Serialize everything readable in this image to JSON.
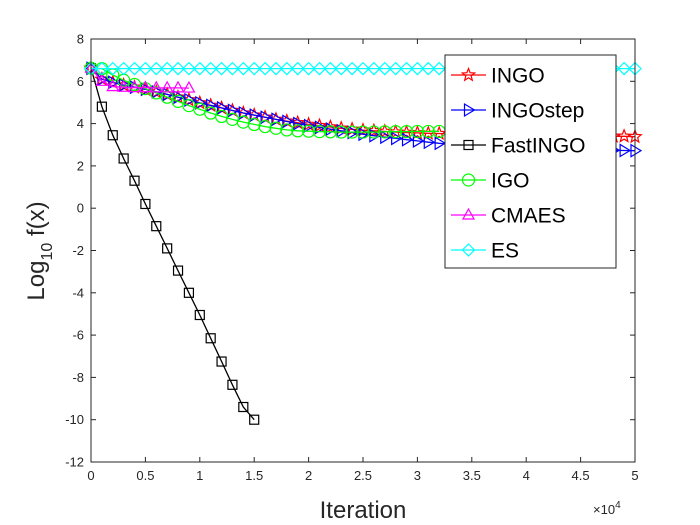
{
  "chart_data": {
    "type": "line",
    "xlabel": "Iteration",
    "ylabel": "Log",
    "ylabel_sub": "10",
    "ylabel_tail": " f(x)",
    "x_multiplier_label": "×10",
    "x_multiplier_exp": "4",
    "xlim": [
      0,
      50000
    ],
    "ylim": [
      -12,
      8
    ],
    "xticks": [
      0,
      5000,
      10000,
      15000,
      20000,
      25000,
      30000,
      35000,
      40000,
      45000,
      50000
    ],
    "xtick_labels": [
      "0",
      "0.5",
      "1",
      "1.5",
      "2",
      "2.5",
      "3",
      "3.5",
      "4",
      "4.5",
      "5"
    ],
    "yticks": [
      8,
      6,
      4,
      2,
      0,
      -2,
      -4,
      -6,
      -8,
      -10,
      -12
    ],
    "ytick_labels": [
      "8",
      "6",
      "4",
      "2",
      "0",
      "-2",
      "-4",
      "-6",
      "-8",
      "-10",
      "-12"
    ],
    "legend_position": "top-right",
    "series": [
      {
        "name": "INGO",
        "color": "#ff0000",
        "marker": "star",
        "x": [
          0,
          1000,
          2000,
          3000,
          4000,
          5000,
          6000,
          7000,
          8000,
          9000,
          10000,
          11000,
          12000,
          13000,
          14000,
          15000,
          16000,
          17000,
          18000,
          19000,
          20000,
          21000,
          22000,
          23000,
          24000,
          25000,
          26000,
          27000,
          28000,
          29000,
          30000,
          31000,
          32000,
          33000,
          34000,
          35000,
          36000,
          37000,
          38000,
          39000,
          40000,
          41000,
          42000,
          43000,
          44000,
          45000,
          46000,
          47000,
          48000,
          49000,
          50000
        ],
        "y": [
          6.62,
          6.1,
          5.95,
          5.82,
          5.72,
          5.62,
          5.5,
          5.38,
          5.25,
          5.12,
          4.98,
          4.86,
          4.74,
          4.62,
          4.5,
          4.4,
          4.3,
          4.2,
          4.12,
          4.04,
          3.96,
          3.9,
          3.84,
          3.78,
          3.73,
          3.69,
          3.66,
          3.63,
          3.6,
          3.58,
          3.56,
          3.54,
          3.53,
          3.52,
          3.51,
          3.5,
          3.49,
          3.48,
          3.47,
          3.47,
          3.46,
          3.45,
          3.45,
          3.44,
          3.43,
          3.43,
          3.42,
          3.41,
          3.4,
          3.4,
          3.38
        ]
      },
      {
        "name": "INGOstep",
        "color": "#0000ff",
        "marker": "triangle-right",
        "x": [
          0,
          1000,
          2000,
          3000,
          4000,
          5000,
          6000,
          7000,
          8000,
          9000,
          10000,
          11000,
          12000,
          13000,
          14000,
          15000,
          16000,
          17000,
          18000,
          19000,
          20000,
          21000,
          22000,
          23000,
          24000,
          25000,
          26000,
          27000,
          28000,
          29000,
          30000,
          31000,
          32000,
          33000,
          34000,
          35000,
          36000,
          37000,
          38000,
          39000,
          40000,
          41000,
          42000,
          43000,
          44000,
          45000,
          46000,
          47000,
          48000,
          49000,
          50000
        ],
        "y": [
          6.62,
          6.1,
          5.95,
          5.82,
          5.72,
          5.62,
          5.5,
          5.38,
          5.25,
          5.12,
          4.98,
          4.86,
          4.74,
          4.62,
          4.5,
          4.4,
          4.3,
          4.2,
          4.1,
          4.0,
          3.9,
          3.82,
          3.74,
          3.66,
          3.58,
          3.5,
          3.43,
          3.36,
          3.3,
          3.24,
          3.18,
          3.12,
          3.07,
          3.03,
          2.99,
          2.96,
          2.93,
          2.9,
          2.88,
          2.86,
          2.84,
          2.82,
          2.8,
          2.79,
          2.78,
          2.77,
          2.76,
          2.75,
          2.74,
          2.73,
          2.72
        ]
      },
      {
        "name": "FastINGO",
        "color": "#000000",
        "marker": "square",
        "x": [
          0,
          1000,
          2000,
          3000,
          4000,
          5000,
          6000,
          7000,
          8000,
          9000,
          10000,
          11000,
          12000,
          13000,
          14000,
          15000
        ],
        "y": [
          6.62,
          4.8,
          3.45,
          2.35,
          1.3,
          0.2,
          -0.85,
          -1.9,
          -2.95,
          -4.0,
          -5.05,
          -6.15,
          -7.25,
          -8.35,
          -9.4,
          -10.0
        ]
      },
      {
        "name": "IGO",
        "color": "#00ff00",
        "marker": "circle",
        "x": [
          0,
          1000,
          2000,
          3000,
          4000,
          5000,
          6000,
          7000,
          8000,
          9000,
          10000,
          11000,
          12000,
          13000,
          14000,
          15000,
          16000,
          17000,
          18000,
          19000,
          20000,
          21000,
          22000,
          23000,
          24000,
          25000,
          26000,
          27000,
          28000,
          29000,
          30000,
          31000,
          32000
        ],
        "y": [
          6.62,
          6.6,
          6.3,
          6.05,
          5.85,
          5.65,
          5.45,
          5.25,
          5.05,
          4.85,
          4.68,
          4.5,
          4.34,
          4.2,
          4.07,
          3.96,
          3.86,
          3.78,
          3.7,
          3.66,
          3.64,
          3.62,
          3.61,
          3.6,
          3.6,
          3.6,
          3.6,
          3.61,
          3.62,
          3.62,
          3.63,
          3.63,
          3.63
        ]
      },
      {
        "name": "CMAES",
        "color": "#ff00ff",
        "marker": "triangle-up",
        "x": [
          0,
          1000,
          2000,
          3000,
          4000,
          5000,
          6000,
          7000,
          8000,
          9000
        ],
        "y": [
          6.62,
          6.0,
          5.75,
          5.72,
          5.7,
          5.7,
          5.69,
          5.69,
          5.69,
          5.68
        ]
      },
      {
        "name": "ES",
        "color": "#00ffff",
        "marker": "diamond",
        "x": [
          0,
          1000,
          2000,
          3000,
          4000,
          5000,
          6000,
          7000,
          8000,
          9000,
          10000,
          11000,
          12000,
          13000,
          14000,
          15000,
          16000,
          17000,
          18000,
          19000,
          20000,
          21000,
          22000,
          23000,
          24000,
          25000,
          26000,
          27000,
          28000,
          29000,
          30000,
          31000,
          32000,
          33000,
          34000,
          35000,
          36000,
          37000,
          38000,
          39000,
          40000,
          41000,
          42000,
          43000,
          44000,
          45000,
          46000,
          47000,
          48000,
          49000,
          50000
        ],
        "y": [
          6.6,
          6.6,
          6.6,
          6.6,
          6.6,
          6.6,
          6.6,
          6.6,
          6.6,
          6.6,
          6.6,
          6.6,
          6.6,
          6.6,
          6.6,
          6.6,
          6.6,
          6.6,
          6.6,
          6.6,
          6.6,
          6.6,
          6.6,
          6.6,
          6.6,
          6.6,
          6.6,
          6.6,
          6.6,
          6.6,
          6.6,
          6.6,
          6.6,
          6.6,
          6.6,
          6.6,
          6.6,
          6.6,
          6.6,
          6.6,
          6.6,
          6.6,
          6.6,
          6.6,
          6.6,
          6.6,
          6.6,
          6.6,
          6.6,
          6.6,
          6.6
        ]
      }
    ]
  }
}
